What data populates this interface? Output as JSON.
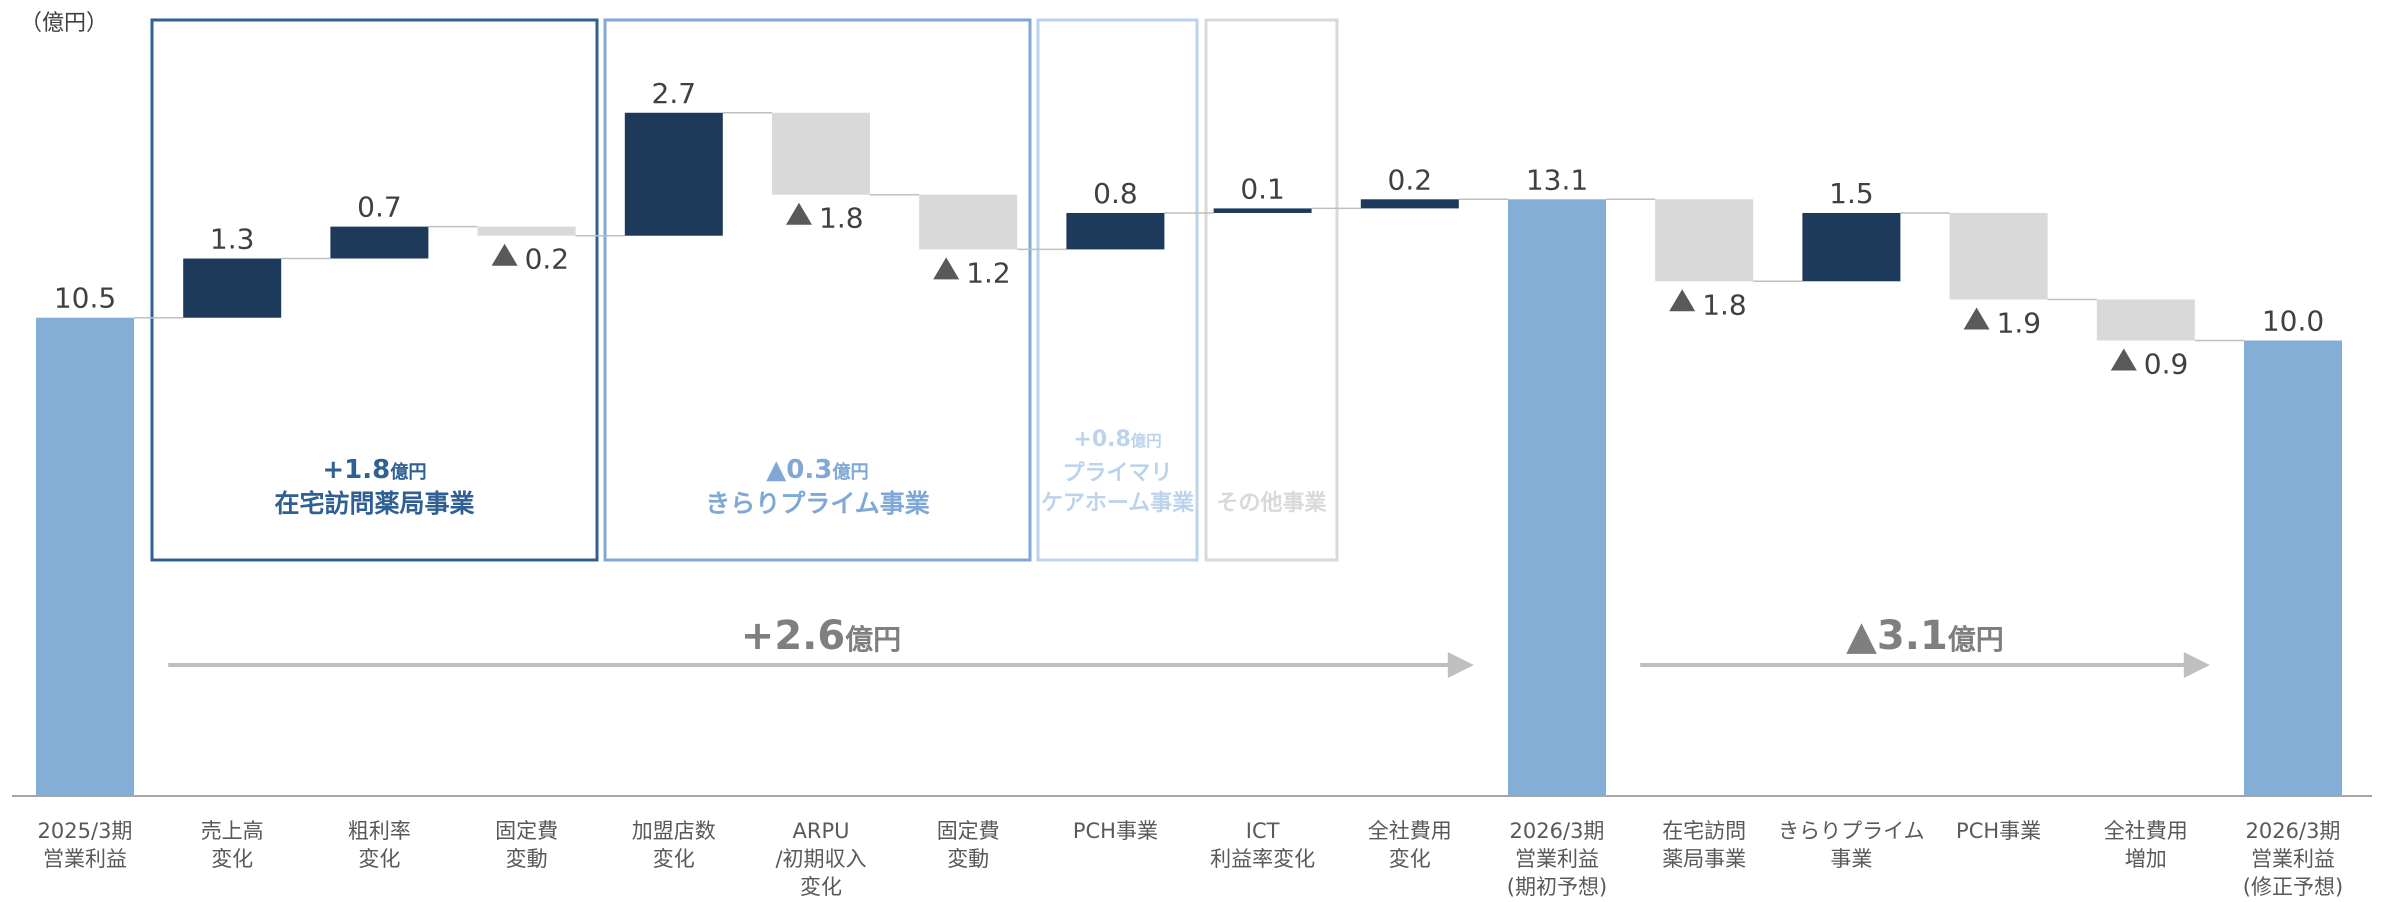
{
  "chart_data": {
    "type": "waterfall",
    "unit_label": "（億円）",
    "ylim": [
      0,
      14.5
    ],
    "colors": {
      "total": "#85AED6",
      "increase": "#1E3A5A",
      "decrease": "#D9D9D9",
      "connector": "#BFBFBF",
      "axis": "#A6A6A6",
      "label": "#404040",
      "triangle": "#595959",
      "group_home": "#2F5F93",
      "group_kirari": "#7FA8D6",
      "group_pch": "#BCD3EC",
      "group_other": "#D9D9D9",
      "arrow": "#BFBFBF",
      "arrow_text": "#7F7F7F"
    },
    "steps": [
      {
        "name": "2025/3期\n営業利益",
        "kind": "total",
        "value": 10.5,
        "label": "10.5"
      },
      {
        "name": "売上高\n変化",
        "kind": "increase",
        "value": 1.3,
        "label": "1.3"
      },
      {
        "name": "粗利率\n変化",
        "kind": "increase",
        "value": 0.7,
        "label": "0.7"
      },
      {
        "name": "固定費\n変動",
        "kind": "decrease",
        "value": -0.2,
        "label": "0.2"
      },
      {
        "name": "加盟店数\n変化",
        "kind": "increase",
        "value": 2.7,
        "label": "2.7"
      },
      {
        "name": "ARPU\n/初期収入\n変化",
        "kind": "decrease",
        "value": -1.8,
        "label": "1.8"
      },
      {
        "name": "固定費\n変動",
        "kind": "decrease",
        "value": -1.2,
        "label": "1.2"
      },
      {
        "name": "PCH事業",
        "kind": "increase",
        "value": 0.8,
        "label": "0.8"
      },
      {
        "name": "ICT\n利益率変化",
        "kind": "increase",
        "value": 0.1,
        "label": "0.1"
      },
      {
        "name": "全社費用\n変化",
        "kind": "increase",
        "value": 0.2,
        "label": "0.2"
      },
      {
        "name": "2026/3期\n営業利益\n(期初予想)",
        "kind": "total",
        "value": 13.1,
        "label": "13.1"
      },
      {
        "name": "在宅訪問\n薬局事業",
        "kind": "decrease",
        "value": -1.8,
        "label": "1.8"
      },
      {
        "name": "きらりプライム\n事業",
        "kind": "increase",
        "value": 1.5,
        "label": "1.5"
      },
      {
        "name": "PCH事業",
        "kind": "decrease",
        "value": -1.9,
        "label": "1.9"
      },
      {
        "name": "全社費用\n増加",
        "kind": "decrease",
        "value": -0.9,
        "label": "0.9"
      },
      {
        "name": "2026/3期\n営業利益\n(修正予想)",
        "kind": "total",
        "value": 10.0,
        "label": "10.0"
      }
    ],
    "groups": [
      {
        "key": "group_home",
        "from": 1,
        "to": 3,
        "amount": "+1.8",
        "unit": "億円",
        "title": "在宅訪問薬局事業"
      },
      {
        "key": "group_kirari",
        "from": 4,
        "to": 6,
        "amount": "▲0.3",
        "unit": "億円",
        "title": "きらりプライム事業"
      },
      {
        "key": "group_pch",
        "from": 7,
        "to": 7,
        "amount": "+0.8",
        "unit": "億円",
        "title": "プライマリ\nケアホーム事業"
      },
      {
        "key": "group_other",
        "from": 8,
        "to": 8,
        "amount": "",
        "unit": "",
        "title": "その他事業"
      }
    ],
    "arrows": [
      {
        "from": 1,
        "to": 9,
        "amount": "+2.6",
        "unit": "億円"
      },
      {
        "from": 11,
        "to": 14,
        "amount": "▲3.1",
        "unit": "億円"
      }
    ]
  }
}
